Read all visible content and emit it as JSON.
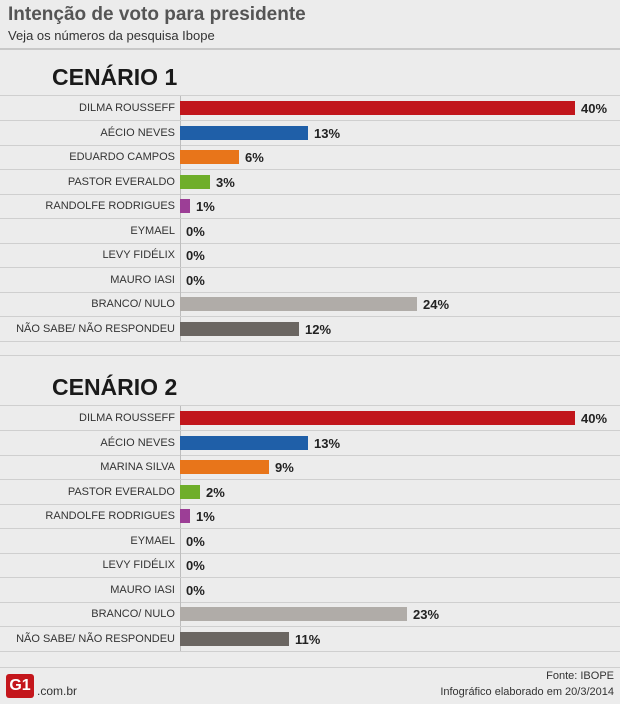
{
  "header": {
    "title": "Intenção de voto para presidente",
    "subtitle": "Veja os números da pesquisa Ibope"
  },
  "chart_data": [
    {
      "type": "bar",
      "orientation": "horizontal",
      "title": "CENÁRIO 1",
      "categories": [
        "DILMA ROUSSEFF",
        "AÉCIO NEVES",
        "EDUARDO CAMPOS",
        "PASTOR EVERALDO",
        "RANDOLFE RODRIGUES",
        "EYMAEL",
        "LEVY FIDÉLIX",
        "MAURO IASI",
        "BRANCO/ NULO",
        "NÃO SABE/ NÃO RESPONDEU"
      ],
      "values": [
        40,
        13,
        6,
        3,
        1,
        0,
        0,
        0,
        24,
        12
      ],
      "value_labels": [
        "40%",
        "13%",
        "6%",
        "3%",
        "1%",
        "0%",
        "0%",
        "0%",
        "24%",
        "12%"
      ],
      "colors": [
        "#c1161c",
        "#1f5fa8",
        "#e8751a",
        "#6fae2a",
        "#9c3e96",
        "#999999",
        "#999999",
        "#999999",
        "#b0aca8",
        "#6b6662"
      ],
      "xlim": [
        0,
        40
      ]
    },
    {
      "type": "bar",
      "orientation": "horizontal",
      "title": "CENÁRIO 2",
      "categories": [
        "DILMA ROUSSEFF",
        "AÉCIO NEVES",
        "MARINA SILVA",
        "PASTOR EVERALDO",
        "RANDOLFE RODRIGUES",
        "EYMAEL",
        "LEVY FIDÉLIX",
        "MAURO IASI",
        "BRANCO/ NULO",
        "NÃO SABE/ NÃO RESPONDEU"
      ],
      "values": [
        40,
        13,
        9,
        2,
        1,
        0,
        0,
        0,
        23,
        11
      ],
      "value_labels": [
        "40%",
        "13%",
        "9%",
        "2%",
        "1%",
        "0%",
        "0%",
        "0%",
        "23%",
        "11%"
      ],
      "colors": [
        "#c1161c",
        "#1f5fa8",
        "#e8751a",
        "#6fae2a",
        "#9c3e96",
        "#999999",
        "#999999",
        "#999999",
        "#b0aca8",
        "#6b6662"
      ],
      "xlim": [
        0,
        40
      ]
    }
  ],
  "footer": {
    "logo_text": "G1",
    "logo_domain": ".com.br",
    "source": "Fonte: IBOPE",
    "made": "Infográfico elaborado em 20/3/2014"
  }
}
